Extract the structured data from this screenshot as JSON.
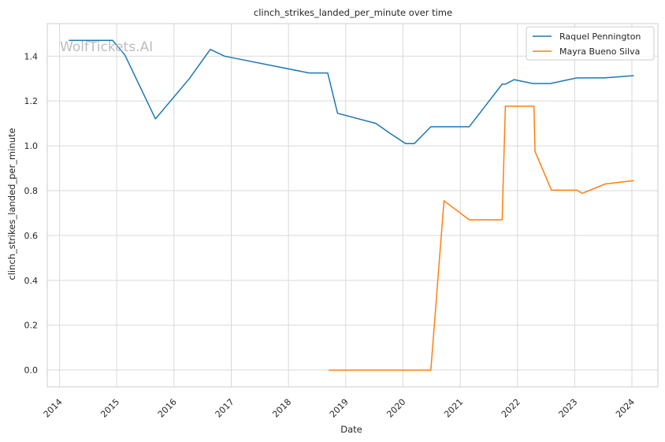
{
  "watermark": "WolfTickets.AI",
  "chart_data": {
    "type": "line",
    "title": "clinch_strikes_landed_per_minute over time",
    "xlabel": "Date",
    "ylabel": "clinch_strikes_landed_per_minute",
    "x_ticks": [
      "2014",
      "2015",
      "2016",
      "2017",
      "2018",
      "2019",
      "2020",
      "2021",
      "2022",
      "2023",
      "2024"
    ],
    "xlim": [
      "2013-10-15",
      "2024-06-15"
    ],
    "ylim": [
      -0.075,
      1.545
    ],
    "y_ticks": [
      0.0,
      0.2,
      0.4,
      0.6,
      0.8,
      1.0,
      1.2,
      1.4
    ],
    "y_tick_labels": [
      "0.0",
      "0.2",
      "0.4",
      "0.6",
      "0.8",
      "1.0",
      "1.2",
      "1.4"
    ],
    "grid": true,
    "legend_position": "top-right",
    "series": [
      {
        "name": "Raquel Pennington",
        "color": "#1f77b4",
        "points": [
          [
            "2014-03-01",
            1.47
          ],
          [
            "2014-12-06",
            1.47
          ],
          [
            "2015-02-22",
            1.405
          ],
          [
            "2015-09-05",
            1.12
          ],
          [
            "2016-04-09",
            1.3
          ],
          [
            "2016-08-20",
            1.43
          ],
          [
            "2016-11-19",
            1.4
          ],
          [
            "2018-05-12",
            1.325
          ],
          [
            "2018-09-08",
            1.325
          ],
          [
            "2018-11-10",
            1.145
          ],
          [
            "2019-07-13",
            1.1
          ],
          [
            "2019-10-12",
            1.055
          ],
          [
            "2020-01-18",
            1.01
          ],
          [
            "2020-03-14",
            1.01
          ],
          [
            "2020-06-27",
            1.085
          ],
          [
            "2021-02-27",
            1.085
          ],
          [
            "2021-09-25",
            1.275
          ],
          [
            "2021-10-16",
            1.275
          ],
          [
            "2021-12-11",
            1.295
          ],
          [
            "2022-04-09",
            1.278
          ],
          [
            "2022-07-30",
            1.278
          ],
          [
            "2023-01-14",
            1.303
          ],
          [
            "2023-07-08",
            1.303
          ],
          [
            "2024-01-13",
            1.313
          ]
        ]
      },
      {
        "name": "Mayra Bueno Silva",
        "color": "#ff7f0e",
        "points": [
          [
            "2018-09-15",
            0.0
          ],
          [
            "2020-06-27",
            0.0
          ],
          [
            "2020-09-19",
            0.755
          ],
          [
            "2021-02-27",
            0.67
          ],
          [
            "2021-09-25",
            0.67
          ],
          [
            "2021-10-16",
            1.177
          ],
          [
            "2022-04-16",
            1.177
          ],
          [
            "2022-04-23",
            0.975
          ],
          [
            "2022-08-06",
            0.802
          ],
          [
            "2023-01-14",
            0.802
          ],
          [
            "2023-02-18",
            0.788
          ],
          [
            "2023-07-15",
            0.83
          ],
          [
            "2024-01-13",
            0.845
          ]
        ]
      }
    ]
  }
}
